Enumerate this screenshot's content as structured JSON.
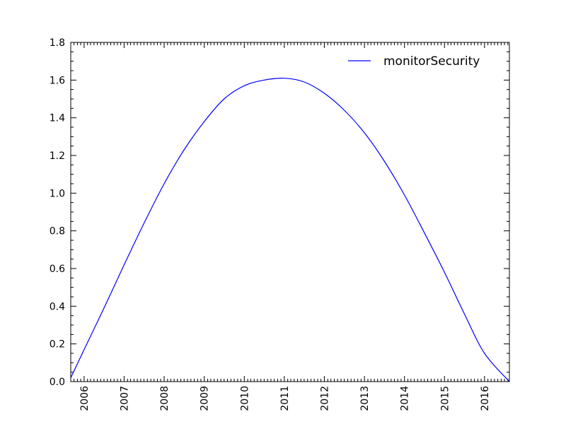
{
  "chart_data": {
    "type": "line",
    "title": "",
    "xlabel": "",
    "ylabel": "",
    "xlim": [
      "2005-09-01",
      "2016-08-15"
    ],
    "ylim": [
      0,
      1.8
    ],
    "x_tick_labels": [
      "2006",
      "2007",
      "2008",
      "2009",
      "2010",
      "2011",
      "2012",
      "2013",
      "2014",
      "2015",
      "2016"
    ],
    "y_tick_labels": [
      "0.0",
      "0.2",
      "0.4",
      "0.6",
      "0.8",
      "1.0",
      "1.2",
      "1.4",
      "1.6",
      "1.8"
    ],
    "grid": false,
    "legend_position": "top-right",
    "series": [
      {
        "name": "monitorSecurity",
        "color": "#0000ff",
        "x": [
          "2005-09-01",
          "2006-01-01",
          "2006-07-01",
          "2007-01-01",
          "2007-07-01",
          "2008-01-01",
          "2008-07-01",
          "2009-01-01",
          "2009-07-01",
          "2010-01-01",
          "2010-07-01",
          "2011-01-01",
          "2011-07-01",
          "2012-01-01",
          "2012-07-01",
          "2013-01-01",
          "2013-07-01",
          "2014-01-01",
          "2014-07-01",
          "2015-01-01",
          "2015-07-01",
          "2016-01-01",
          "2016-08-15"
        ],
        "y": [
          0.02,
          0.17,
          0.39,
          0.62,
          0.84,
          1.05,
          1.23,
          1.38,
          1.5,
          1.57,
          1.6,
          1.61,
          1.59,
          1.53,
          1.44,
          1.32,
          1.17,
          0.99,
          0.79,
          0.58,
          0.36,
          0.15,
          0.0
        ]
      }
    ]
  }
}
